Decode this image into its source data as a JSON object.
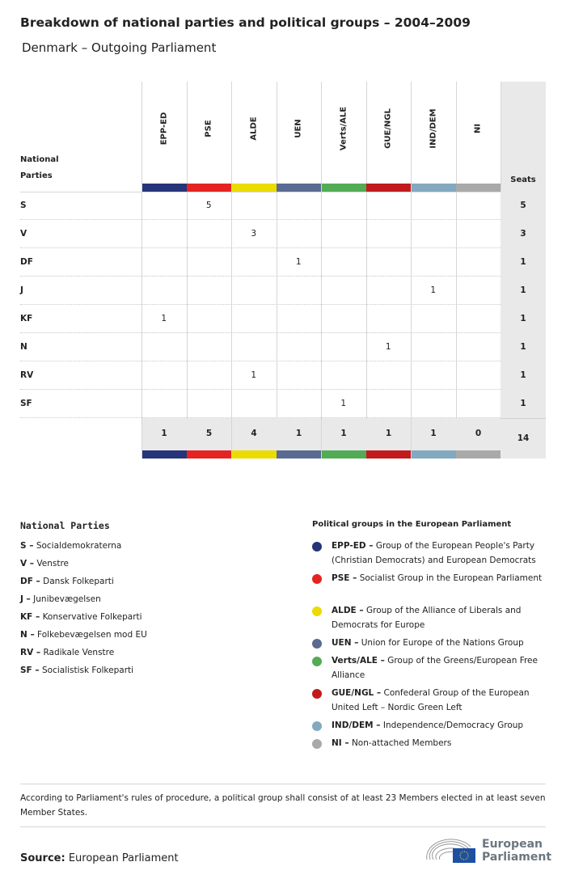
{
  "title": "Breakdown of national parties and political groups – 2004–2009",
  "subtitle": "Denmark – Outgoing Parliament",
  "table": {
    "party_header_line1": "National",
    "party_header_line2": "Parties",
    "seats_header": "Seats",
    "groups": [
      {
        "code": "EPP-ED",
        "color": "#263479"
      },
      {
        "code": "PSE",
        "color": "#e52421"
      },
      {
        "code": "ALDE",
        "color": "#ebdb00"
      },
      {
        "code": "UEN",
        "color": "#5a6a91"
      },
      {
        "code": "Verts/ALE",
        "color": "#52ac55"
      },
      {
        "code": "GUE/NGL",
        "color": "#c11b1d"
      },
      {
        "code": "IND/DEM",
        "color": "#82a9bf"
      },
      {
        "code": "NI",
        "color": "#a9a9a9"
      }
    ],
    "rows": [
      {
        "party": "S",
        "values": [
          "",
          "5",
          "",
          "",
          "",
          "",
          "",
          ""
        ],
        "seats": "5"
      },
      {
        "party": "V",
        "values": [
          "",
          "",
          "3",
          "",
          "",
          "",
          "",
          ""
        ],
        "seats": "3"
      },
      {
        "party": "DF",
        "values": [
          "",
          "",
          "",
          "1",
          "",
          "",
          "",
          ""
        ],
        "seats": "1"
      },
      {
        "party": "J",
        "values": [
          "",
          "",
          "",
          "",
          "",
          "",
          "1",
          ""
        ],
        "seats": "1"
      },
      {
        "party": "KF",
        "values": [
          "1",
          "",
          "",
          "",
          "",
          "",
          "",
          ""
        ],
        "seats": "1"
      },
      {
        "party": "N",
        "values": [
          "",
          "",
          "",
          "",
          "",
          "1",
          "",
          ""
        ],
        "seats": "1"
      },
      {
        "party": "RV",
        "values": [
          "",
          "",
          "1",
          "",
          "",
          "",
          "",
          ""
        ],
        "seats": "1"
      },
      {
        "party": "SF",
        "values": [
          "",
          "",
          "",
          "",
          "1",
          "",
          "",
          ""
        ],
        "seats": "1"
      }
    ],
    "totals": [
      "1",
      "5",
      "4",
      "1",
      "1",
      "1",
      "1",
      "0"
    ],
    "total_seats": "14"
  },
  "legend_parties": {
    "title": "National Parties",
    "items": [
      {
        "abbr": "S –",
        "name": "Socialdemokraterna"
      },
      {
        "abbr": "V –",
        "name": "Venstre"
      },
      {
        "abbr": "DF –",
        "name": "Dansk Folkeparti"
      },
      {
        "abbr": "J –",
        "name": "Junibevægelsen"
      },
      {
        "abbr": "KF –",
        "name": "Konservative Folkeparti"
      },
      {
        "abbr": "N –",
        "name": "Folkebevægelsen mod EU"
      },
      {
        "abbr": "RV –",
        "name": "Radikale Venstre"
      },
      {
        "abbr": "SF –",
        "name": "Socialistisk Folkeparti"
      }
    ]
  },
  "legend_groups": {
    "title": "Political groups in the European Parliament",
    "items": [
      {
        "abbr": "EPP-ED –",
        "name": "Group of the European People's Party (Christian Democrats) and European Democrats"
      },
      {
        "abbr": "PSE –",
        "name": "Socialist Group in the European Parliament"
      },
      {
        "abbr": "ALDE –",
        "name": "Group of the Alliance of Liberals and Democrats for Europe"
      },
      {
        "abbr": "UEN –",
        "name": "Union for Europe of the Nations Group"
      },
      {
        "abbr": "Verts/ALE –",
        "name": "Group of the Greens/European Free Alliance"
      },
      {
        "abbr": "GUE/NGL –",
        "name": "Confederal Group of the European United Left – Nordic Green Left"
      },
      {
        "abbr": "IND/DEM –",
        "name": "Independence/Democracy Group"
      },
      {
        "abbr": "NI –",
        "name": "Non-attached Members"
      }
    ]
  },
  "note": "According to Parliament's rules of procedure, a political group shall consist of at least 23 Members elected in at least seven Member States.",
  "source_label": "Source:",
  "source_value": "European Parliament",
  "logo": {
    "line1": "European",
    "line2": "Parliament"
  }
}
